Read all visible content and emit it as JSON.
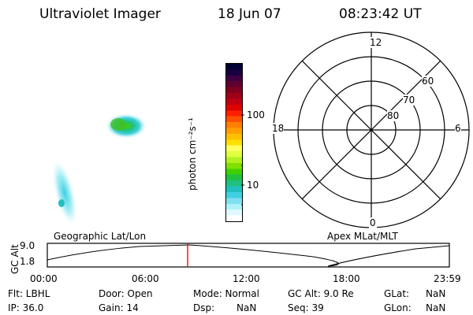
{
  "header": {
    "instrument": "Ultraviolet Imager",
    "date": "18 Jun 07",
    "time": "08:23:42 UT"
  },
  "colorbar": {
    "label": "photon cm⁻²s⁻¹",
    "ticks": [
      "100",
      "10"
    ],
    "scale": "log",
    "colors": [
      "#000033",
      "#1a0040",
      "#400040",
      "#600030",
      "#800020",
      "#a00018",
      "#c00010",
      "#e00000",
      "#ff2000",
      "#ff5000",
      "#ff8000",
      "#ffa000",
      "#ffc000",
      "#ffe000",
      "#ffff60",
      "#e0ff40",
      "#b0f020",
      "#80e000",
      "#40d000",
      "#20c040",
      "#20c080",
      "#20c0c0",
      "#40d0e0",
      "#80e0f0",
      "#b0f0f8",
      "#e0f8ff",
      "#ffffff"
    ]
  },
  "polar": {
    "top_label": "12",
    "bottom_label": "0",
    "left_label": "18",
    "right_label": "6",
    "lat_labels": [
      "60",
      "70",
      "80"
    ]
  },
  "timeline": {
    "left_label": "Geographic Lat/Lon",
    "right_label": "Apex MLat/MLT",
    "axis_title": "GC Alt",
    "y_ticks": [
      "9.0",
      "1.8"
    ],
    "x_ticks": [
      "00:00",
      "06:00",
      "12:00",
      "18:00",
      "23:59"
    ],
    "marker_color": "#ff0000"
  },
  "status": {
    "flt": "Flt: LBHL",
    "ip": "IP: 36.0",
    "door": "Door: Open",
    "gain": "Gain: 14",
    "mode": "Mode: Normal",
    "dsp_label": "Dsp:",
    "dsp_value": "NaN",
    "gc_alt": "GC Alt: 9.0 Re",
    "seq": "Seq: 39",
    "glat_label": "GLat:",
    "glat_value": "NaN",
    "glon_label": "GLon:",
    "glon_value": "NaN"
  }
}
